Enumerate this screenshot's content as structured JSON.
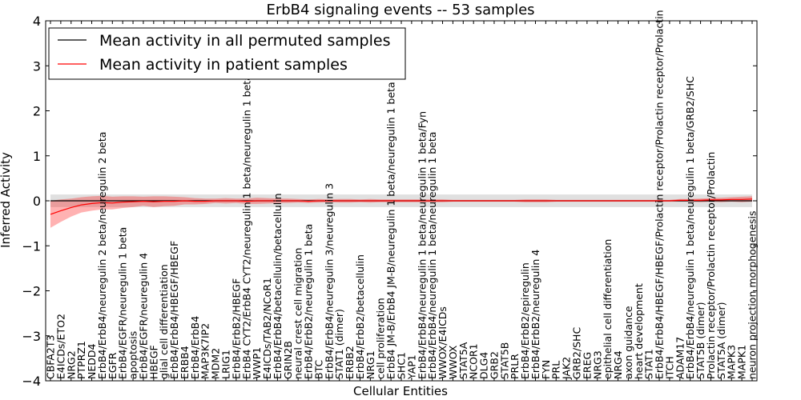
{
  "chart_data": {
    "type": "line",
    "title": "ErbB4 signaling events -- 53 samples",
    "xlabel": "Cellular Entities",
    "ylabel": "Inferred Activity",
    "ylim": [
      -4,
      4
    ],
    "yticks": [
      -4,
      -3,
      -2,
      -1,
      0,
      1,
      2,
      3,
      4
    ],
    "legend": {
      "placement": "top-left",
      "entries": [
        {
          "label": "Mean activity in all permuted samples",
          "color": "#000000"
        },
        {
          "label": "Mean activity in patient samples",
          "color": "#ff0000"
        }
      ]
    },
    "categories": [
      "CBFA2T3",
      "E4ICDs/ETO2",
      "NRG2",
      "PTPRZ1",
      "NEDD4",
      "ErbB4/ErbB4/neuregulin 2 beta/neuregulin 2 beta",
      "EGFR",
      "ErbB4/EGFR/neuregulin 1 beta",
      "apoptosis",
      "ErbB4/EGFR/neuregulin 4",
      "HBEGF",
      "glial cell differentiation",
      "ErbB4/ErbB4/HBEGF/HBEGF",
      "ERBB4",
      "ErbB4/ErbB4",
      "MAP3K7IP2",
      "MDM2",
      "LRIG1",
      "ErbB4/ErbB2/HBEGF",
      "ErbB4 CYT2/ErbB4 CYT2/neuregulin 1 beta/neuregulin 1 beta",
      "WWP1",
      "E4ICDs/TAB2/NCoR1",
      "ErbB4/ErbB4/betacellulin/betacellulin",
      "GRIN2B",
      "neural crest cell migration",
      "ErbB4/ErbB2/neuregulin 1 beta",
      "BTC",
      "ErbB4/ErbB4/neuregulin 3/neuregulin 3",
      "STAT1 (dimer)",
      "ERBB2",
      "ErbB4/ErbB2/betacellulin",
      "NRG1",
      "cell proliferation",
      "ErbB4 JM-B/ErbB4 JM-B/neuregulin 1 beta/neuregulin 1 beta",
      "SHC1",
      "YAP1",
      "ErbB4/ErbB4/neuregulin 1 beta/neuregulin 1 beta/Fyn",
      "ErbB4/ErbB4/neuregulin 1 beta/neuregulin 1 beta",
      "WWOX/E4ICDs",
      "WWOX",
      "STAT5A",
      "NCOR1",
      "DLG4",
      "GRB2",
      "STAT5B",
      "PRLR",
      "ErbB4/ErbB2/epiregulin",
      "ErbB4/ErbB2/neuregulin 4",
      "FYN",
      "PRL",
      "JAK2",
      "GRB2/SHC",
      "EREG",
      "NRG3",
      "epithelial cell differentiation",
      "NRG4",
      "axon guidance",
      "heart development",
      "STAT1",
      "ErbB4/ErbB4/HBEGF/HBEGF/Prolactin receptor/Prolactin receptor/Prolactin",
      "ITCH",
      "ADAM17",
      "ErbB4/ErbB4/neuregulin 1 beta/neuregulin 1 beta/GRB2/SHC",
      "STAT5B (dimer)",
      "Prolactin receptor/Prolactin receptor/Prolactin",
      "STAT5A (dimer)",
      "MAPK3",
      "MAPK1",
      "neuron projection morphogenesis"
    ],
    "series": [
      {
        "name": "Mean activity in all permuted samples",
        "color": "#000000",
        "values": [
          0,
          0,
          0,
          0,
          0,
          0,
          0,
          0,
          0,
          0,
          0,
          0,
          0,
          0,
          0,
          0,
          0,
          0,
          0,
          0,
          0,
          0,
          0,
          0,
          0,
          0,
          0,
          0,
          0,
          0,
          0,
          0,
          0,
          0,
          0,
          0,
          0,
          0,
          0,
          0,
          0,
          0,
          0,
          0,
          0,
          0,
          0,
          0,
          0,
          0,
          0,
          0,
          0,
          0,
          0,
          0,
          0,
          0,
          0,
          0,
          0,
          0,
          0,
          0,
          0,
          0,
          0,
          0,
          0
        ],
        "band": [
          0.14,
          0.14,
          0.14,
          0.14,
          0.14,
          0.14,
          0.14,
          0.14,
          0.14,
          0.14,
          0.14,
          0.14,
          0.14,
          0.14,
          0.14,
          0.14,
          0.14,
          0.14,
          0.14,
          0.14,
          0.14,
          0.14,
          0.14,
          0.14,
          0.14,
          0.14,
          0.14,
          0.14,
          0.14,
          0.14,
          0.14,
          0.14,
          0.14,
          0.14,
          0.14,
          0.14,
          0.14,
          0.14,
          0.14,
          0.14,
          0.14,
          0.14,
          0.14,
          0.14,
          0.14,
          0.14,
          0.14,
          0.14,
          0.14,
          0.14,
          0.14,
          0.14,
          0.14,
          0.14,
          0.14,
          0.14,
          0.14,
          0.14,
          0.14,
          0.14,
          0.14,
          0.14,
          0.14,
          0.14,
          0.14,
          0.14,
          0.14,
          0.14,
          0.14
        ]
      },
      {
        "name": "Mean activity in patient samples",
        "color": "#ff0000",
        "values": [
          -0.3,
          -0.22,
          -0.15,
          -0.09,
          -0.06,
          -0.04,
          -0.05,
          -0.03,
          -0.02,
          -0.01,
          -0.02,
          -0.01,
          -0.01,
          0,
          -0.01,
          -0.01,
          0,
          0,
          0,
          -0.01,
          0,
          0,
          0,
          0,
          0,
          -0.01,
          0,
          0,
          0,
          0,
          0,
          0,
          0,
          0,
          0,
          0,
          0,
          0,
          0,
          0,
          0,
          0,
          0,
          0,
          0,
          0,
          0,
          0,
          0,
          0,
          0,
          0,
          0,
          0,
          0,
          0,
          0,
          0,
          0,
          0,
          0,
          0.01,
          0.01,
          0.01,
          0.02,
          0.02,
          0.03,
          0.03,
          0.04
        ],
        "band": [
          0.3,
          0.25,
          0.2,
          0.17,
          0.16,
          0.15,
          0.14,
          0.13,
          0.12,
          0.1,
          0.12,
          0.11,
          0.1,
          0.08,
          0.07,
          0.06,
          0.05,
          0.06,
          0.05,
          0.06,
          0.07,
          0.06,
          0.05,
          0.05,
          0.04,
          0.04,
          0.04,
          0.03,
          0.04,
          0.04,
          0.03,
          0.04,
          0.03,
          0.03,
          0.03,
          0.03,
          0.03,
          0.03,
          0.03,
          0.02,
          0.02,
          0.02,
          0.02,
          0.02,
          0.02,
          0.02,
          0.03,
          0.03,
          0.03,
          0.02,
          0.02,
          0.02,
          0.02,
          0.02,
          0.02,
          0.02,
          0.02,
          0.02,
          0.02,
          0.02,
          0.02,
          0.03,
          0.03,
          0.04,
          0.04,
          0.05,
          0.05,
          0.06,
          0.06
        ]
      }
    ]
  }
}
